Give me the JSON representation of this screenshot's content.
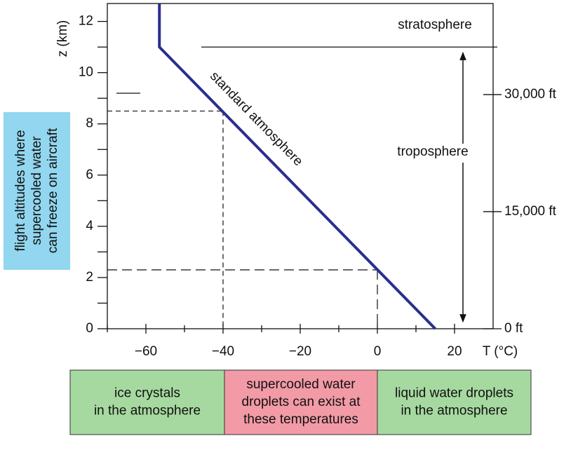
{
  "chart_data": {
    "type": "line",
    "y_label": "z (km)",
    "x_label": "T (°C)",
    "series": [
      {
        "name": "standard atmosphere",
        "color": "#2a2e8e",
        "x": [
          15,
          -56.5,
          -56.5
        ],
        "values": [
          0,
          11,
          12.7
        ]
      }
    ],
    "xlim": [
      -70,
      30
    ],
    "xticks": [
      {
        "value": -60,
        "label": "−60"
      },
      {
        "value": -40,
        "label": "−40"
      },
      {
        "value": -20,
        "label": "−20"
      },
      0,
      20
    ],
    "xminorticks": [
      -70,
      -50,
      -30,
      -10,
      10
    ],
    "ylim": [
      0,
      12.7
    ],
    "yticks": [
      0,
      2,
      4,
      6,
      8,
      10,
      12
    ],
    "yminorticks": [
      1,
      3,
      5,
      7,
      9,
      11
    ],
    "y2lim": [
      0,
      41667
    ],
    "y2ticks": [
      {
        "value": 0,
        "label": "0 ft"
      },
      {
        "value": 15000,
        "label": "15,000 ft"
      },
      {
        "value": 30000,
        "label": "30,000 ft"
      }
    ],
    "reference_points": [
      {
        "x": -40,
        "y": 8.5
      },
      {
        "x": 0,
        "y": 2.3
      }
    ],
    "tropopause": 11,
    "layer_labels": [
      "stratosphere",
      "troposphere"
    ],
    "side_note": [
      "flight altitudes where",
      "supercooled water",
      "can freeze on aircraft"
    ],
    "regions": [
      {
        "lines": [
          "ice crystals",
          "in the atmosphere"
        ],
        "color": "#a6d9a0"
      },
      {
        "lines": [
          "supercooled water",
          "droplets can exist at",
          "these temperatures"
        ],
        "color": "#f29aa6"
      },
      {
        "lines": [
          "liquid water droplets",
          "in the atmosphere"
        ],
        "color": "#a6d9a0"
      }
    ]
  }
}
